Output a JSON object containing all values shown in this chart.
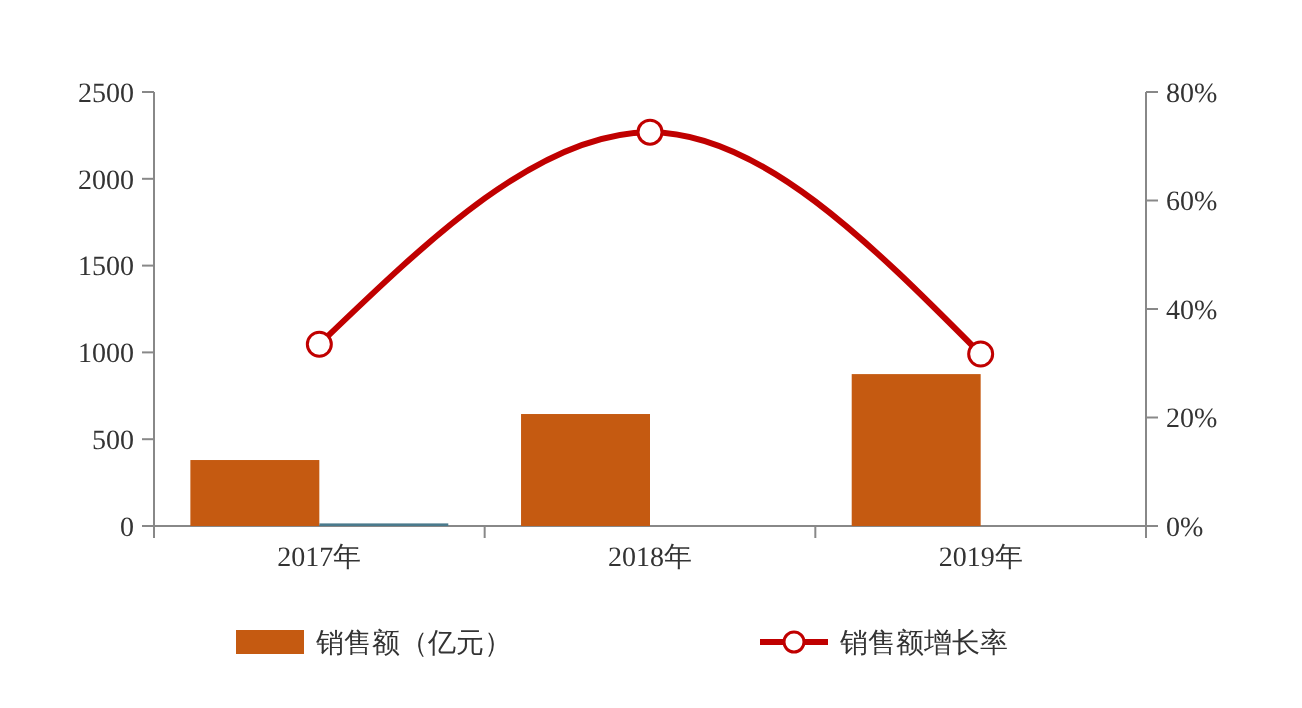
{
  "chart_data": {
    "type": "bar",
    "categories": [
      "2017年",
      "2018年",
      "2019年"
    ],
    "series": [
      {
        "name": "销售额（亿元）",
        "color": "#c55a11",
        "values": [
          380,
          645,
          875
        ]
      },
      {
        "color": "#4a7a8c",
        "values": [
          15,
          null,
          null
        ]
      },
      {
        "name": "销售额增长率",
        "type": "line",
        "axis": "y2",
        "color": "#c00000",
        "values": [
          33.5,
          72.6,
          31.7
        ]
      }
    ],
    "ylim": [
      0,
      2500
    ],
    "yticks": [
      0,
      500,
      1000,
      1500,
      2000,
      2500
    ],
    "y2lim": [
      0,
      80
    ],
    "y2ticks": [
      {
        "value": 0,
        "label": "0%"
      },
      {
        "value": 20,
        "label": "20%"
      },
      {
        "value": 40,
        "label": "40%"
      },
      {
        "value": 60,
        "label": "60%"
      },
      {
        "value": 80,
        "label": "80%"
      }
    ],
    "marker": "circle",
    "legend": "bottom",
    "grid": false
  }
}
